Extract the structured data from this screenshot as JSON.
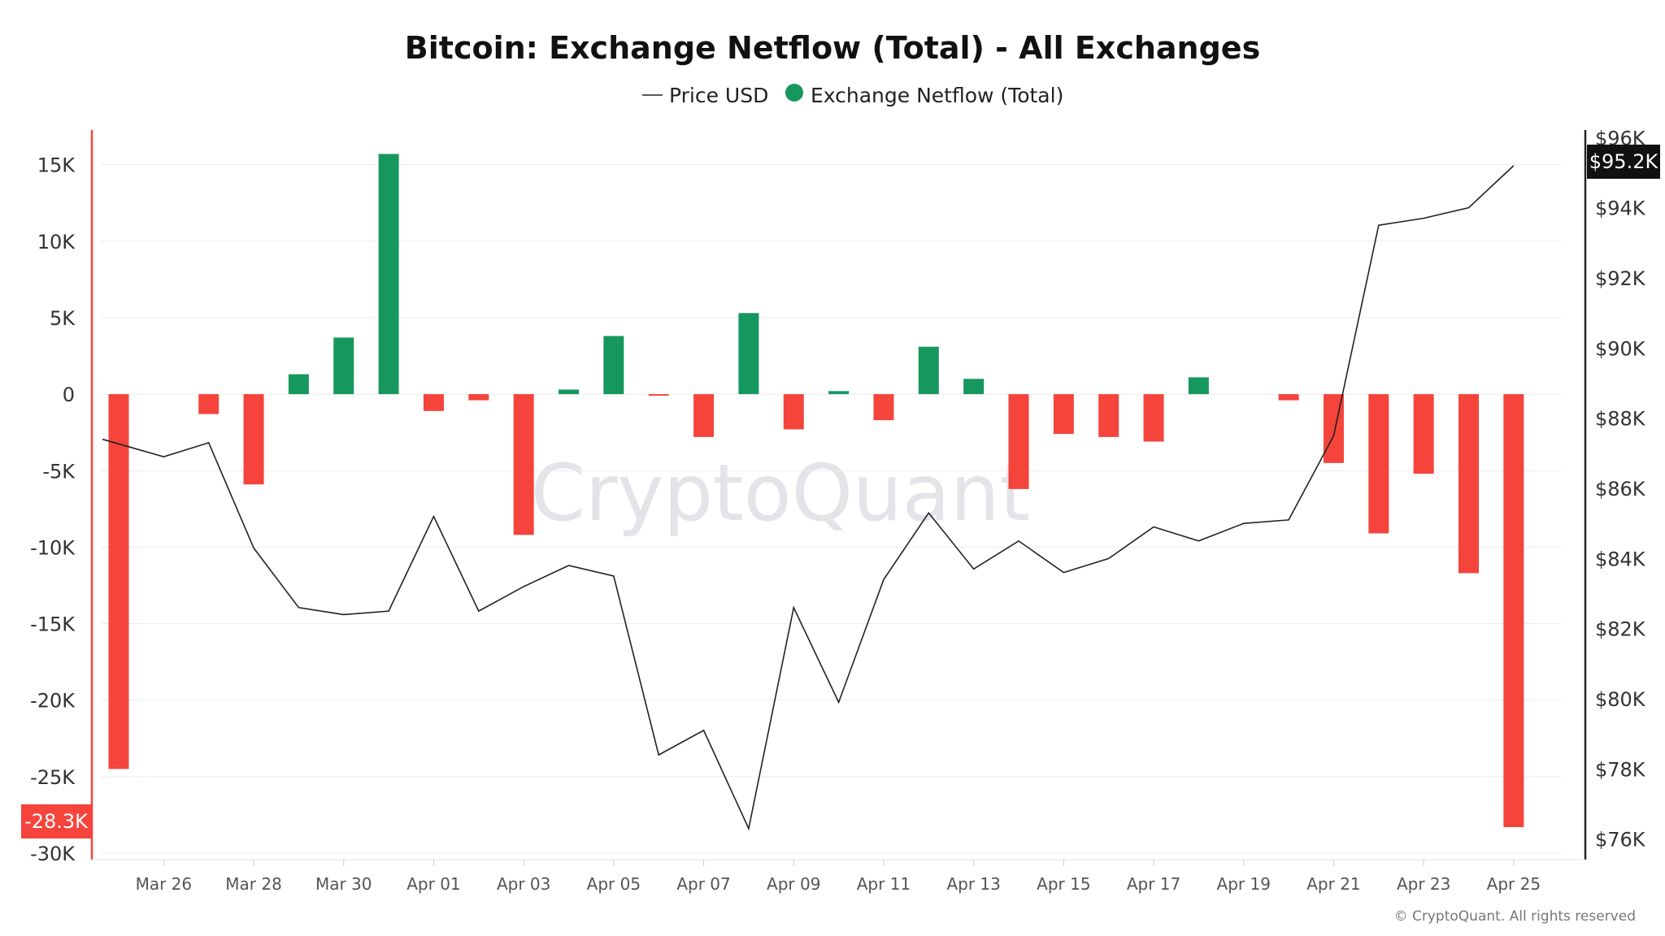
{
  "chart_data": {
    "type": "bar",
    "title": "Bitcoin: Exchange Netflow (Total) - All Exchanges",
    "legend_placement": "top-center",
    "grid": true,
    "colors": {
      "positive": "#16975e",
      "negative": "#f5443b",
      "price_line": "#222222",
      "left_axis_line": "#f5443b"
    },
    "x_ticks": [
      "Mar 26",
      "Mar 28",
      "Mar 30",
      "Apr 01",
      "Apr 03",
      "Apr 05",
      "Apr 07",
      "Apr 09",
      "Apr 11",
      "Apr 13",
      "Apr 15",
      "Apr 17",
      "Apr 19",
      "Apr 21",
      "Apr 23",
      "Apr 25"
    ],
    "y_left": {
      "ticks": [
        "15K",
        "10K",
        "5K",
        "0",
        "-5K",
        "-10K",
        "-15K",
        "-20K",
        "-25K",
        "-30K"
      ],
      "tick_values": [
        15000,
        10000,
        5000,
        0,
        -5000,
        -10000,
        -15000,
        -20000,
        -25000,
        -30000
      ],
      "range": [
        -30000,
        17000
      ]
    },
    "y_right": {
      "ticks": [
        "$96K",
        "$94K",
        "$92K",
        "$90K",
        "$88K",
        "$86K",
        "$84K",
        "$82K",
        "$80K",
        "$78K",
        "$76K"
      ],
      "tick_values": [
        96000,
        94000,
        92000,
        90000,
        88000,
        86000,
        84000,
        82000,
        80000,
        78000,
        76000
      ],
      "range": [
        75600,
        96100
      ]
    },
    "series": [
      {
        "name": "Exchange Netflow (Total)",
        "kind": "bar",
        "dates": [
          "Mar 25",
          "Mar 26",
          "Mar 27",
          "Mar 28",
          "Mar 29",
          "Mar 30",
          "Mar 31",
          "Apr 01",
          "Apr 02",
          "Apr 03",
          "Apr 04",
          "Apr 05",
          "Apr 06",
          "Apr 07",
          "Apr 08",
          "Apr 09",
          "Apr 10",
          "Apr 11",
          "Apr 12",
          "Apr 13",
          "Apr 14",
          "Apr 15",
          "Apr 16",
          "Apr 17",
          "Apr 18",
          "Apr 19",
          "Apr 20",
          "Apr 21",
          "Apr 22",
          "Apr 23",
          "Apr 24",
          "Apr 25"
        ],
        "values": [
          -24500,
          0,
          -1300,
          -5900,
          1300,
          3700,
          15700,
          -1100,
          -400,
          -9200,
          300,
          3800,
          -100,
          -2800,
          5300,
          -2300,
          200,
          -1700,
          3100,
          1000,
          -6200,
          -2600,
          -2800,
          -3100,
          1100,
          0,
          -400,
          -4500,
          -9100,
          -5200,
          -11700,
          -28300
        ]
      },
      {
        "name": "Price USD",
        "kind": "line",
        "dates": [
          "Mar 25",
          "Mar 26",
          "Mar 27",
          "Mar 28",
          "Mar 29",
          "Mar 30",
          "Mar 31",
          "Apr 01",
          "Apr 02",
          "Apr 03",
          "Apr 04",
          "Apr 05",
          "Apr 06",
          "Apr 07",
          "Apr 08",
          "Apr 09",
          "Apr 10",
          "Apr 11",
          "Apr 12",
          "Apr 13",
          "Apr 14",
          "Apr 15",
          "Apr 16",
          "Apr 17",
          "Apr 18",
          "Apr 19",
          "Apr 20",
          "Apr 21",
          "Apr 22",
          "Apr 23",
          "Apr 24",
          "Apr 25"
        ],
        "values": [
          87400,
          86900,
          87300,
          84300,
          82600,
          82400,
          82500,
          85200,
          82500,
          83200,
          83800,
          83500,
          78400,
          79100,
          76300,
          82600,
          79900,
          83400,
          85300,
          83700,
          84500,
          83600,
          84000,
          84900,
          84500,
          85000,
          85100,
          87500,
          93500,
          93700,
          94000,
          95200
        ]
      }
    ],
    "badges": {
      "left_last": "-28.3K",
      "right_last": "$95.2K"
    }
  },
  "legend": {
    "price_label": "Price USD",
    "netflow_label": "Exchange Netflow (Total)"
  },
  "watermark": "CryptoQuant",
  "copyright": "© CryptoQuant. All rights reserved"
}
